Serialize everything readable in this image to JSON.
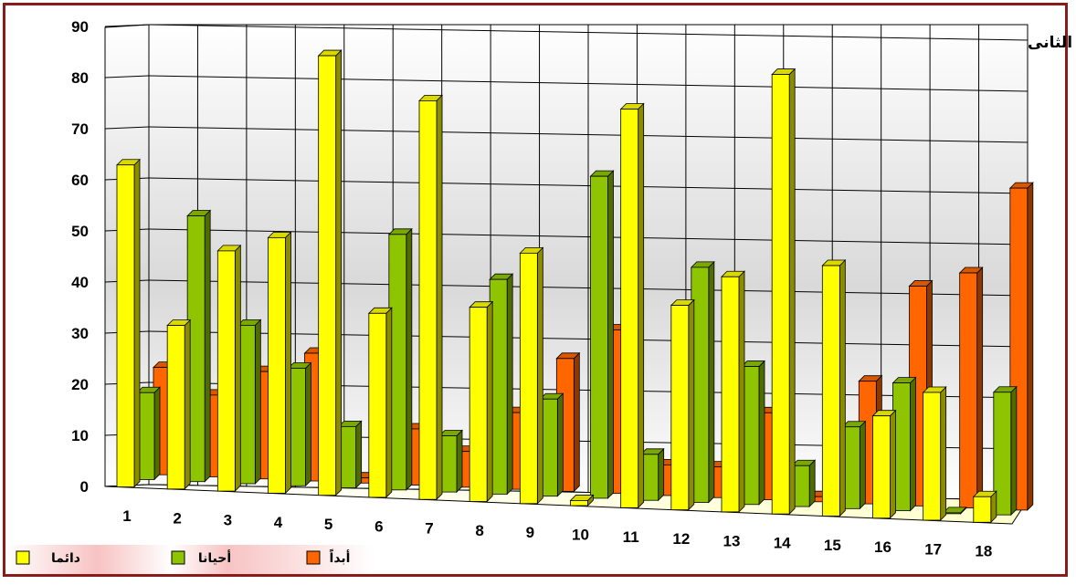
{
  "chart_data": {
    "type": "bar",
    "title": "المحور الثانى",
    "xlabel": "",
    "ylabel": "",
    "ylim": [
      0,
      90
    ],
    "yticks": [
      "0",
      "10",
      "20",
      "30",
      "40",
      "50",
      "60",
      "70",
      "80",
      "90"
    ],
    "categories": [
      "1",
      "2",
      "3",
      "4",
      "5",
      "6",
      "7",
      "8",
      "9",
      "10",
      "11",
      "12",
      "13",
      "14",
      "15",
      "16",
      "17",
      "18"
    ],
    "series": [
      {
        "name": "دائما",
        "color": "#ffff00",
        "values": [
          63,
          32,
          47,
          50,
          86,
          36,
          78,
          38,
          49,
          1,
          78,
          40,
          46,
          86,
          49,
          20,
          25,
          5
        ]
      },
      {
        "name": "أحيانا",
        "color": "#8fc400",
        "values": [
          17,
          52,
          31,
          23,
          12,
          50,
          11,
          42,
          19,
          63,
          9,
          46,
          27,
          8,
          16,
          25,
          0,
          24
        ]
      },
      {
        "name": "أبداً",
        "color": "#ff6600",
        "values": [
          21,
          16,
          21,
          25,
          1,
          11,
          7,
          15,
          26,
          32,
          6,
          6,
          17,
          1,
          24,
          43,
          46,
          63
        ]
      }
    ],
    "grid": true,
    "legend_position": "bottom-left",
    "perspective": "3d"
  }
}
